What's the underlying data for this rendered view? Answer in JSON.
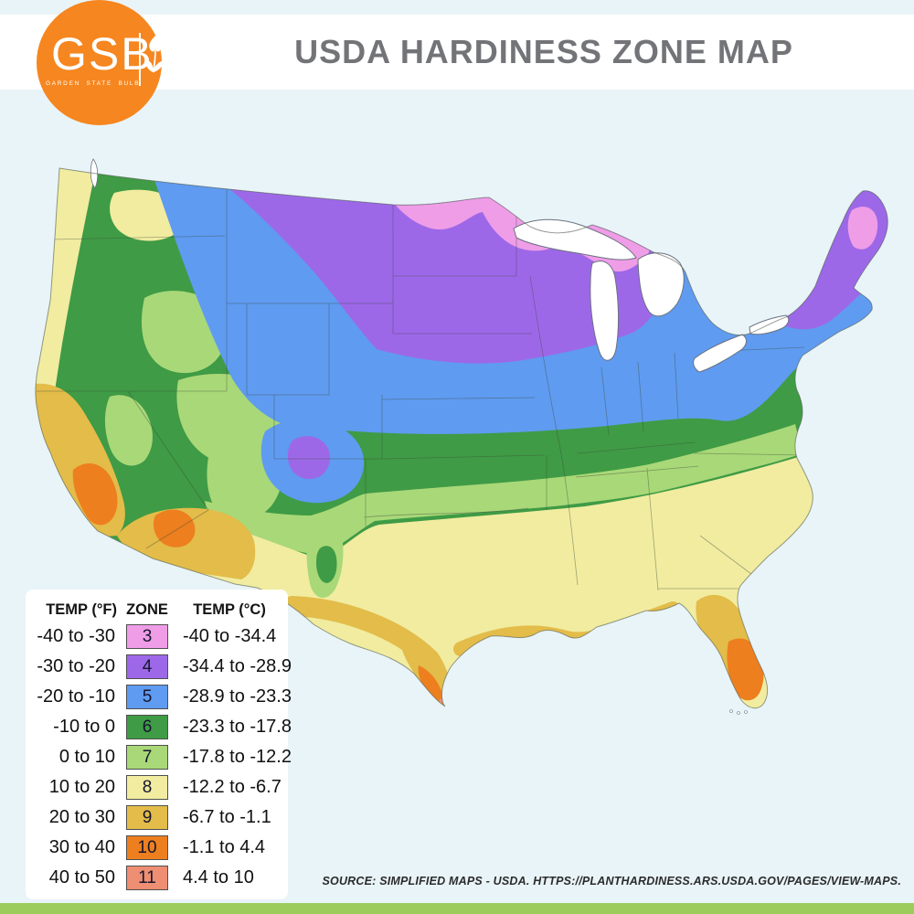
{
  "page": {
    "background": "#e9f4f8",
    "header_bg": "#ffffff",
    "bottom_bar_color": "#9ccd5c"
  },
  "logo": {
    "abbr": "GSB",
    "name": "GARDEN STATE BULB",
    "circle_color": "#f6861f"
  },
  "header": {
    "title": "USDA HARDINESS ZONE MAP"
  },
  "legend": {
    "col_temp_f": "TEMP (°F)",
    "col_zone": "ZONE",
    "col_temp_c": "TEMP (°C)",
    "rows": [
      {
        "temp_f": "-40 to -30",
        "zone": "3",
        "temp_c": "-40 to -34.4",
        "color": "#ef9de7"
      },
      {
        "temp_f": "-30 to -20",
        "zone": "4",
        "temp_c": "-34.4 to -28.9",
        "color": "#9d68e8"
      },
      {
        "temp_f": "-20 to -10",
        "zone": "5",
        "temp_c": "-28.9 to -23.3",
        "color": "#5f9bf0"
      },
      {
        "temp_f": "-10 to 0",
        "zone": "6",
        "temp_c": "-23.3 to -17.8",
        "color": "#3f9b45"
      },
      {
        "temp_f": "0 to 10",
        "zone": "7",
        "temp_c": "-17.8 to -12.2",
        "color": "#a9d878"
      },
      {
        "temp_f": "10 to 20",
        "zone": "8",
        "temp_c": "-12.2 to -6.7",
        "color": "#f1eca0"
      },
      {
        "temp_f": "20 to 30",
        "zone": "9",
        "temp_c": "-6.7 to -1.1",
        "color": "#e3bc4a"
      },
      {
        "temp_f": "30 to 40",
        "zone": "10",
        "temp_c": "-1.1 to 4.4",
        "color": "#ed7f1f"
      },
      {
        "temp_f": "40 to 50",
        "zone": "11",
        "temp_c": "4.4 to 10",
        "color": "#ee8e72"
      }
    ]
  },
  "map": {
    "lake_fill": "#ffffff",
    "outline_color": "#5a6156",
    "state_line_color": "#3c4a3c"
  },
  "footer": {
    "source": "SOURCE: SIMPLIFIED MAPS - USDA. HTTPS://PLANTHARDINESS.ARS.USDA.GOV/PAGES/VIEW-MAPS."
  },
  "chart_data": {
    "type": "table",
    "title": "USDA Hardiness Zones",
    "columns": [
      "TEMP (°F)",
      "ZONE",
      "TEMP (°C)"
    ],
    "rows": [
      [
        "-40 to -30",
        "3",
        "-40 to -34.4"
      ],
      [
        "-30 to -20",
        "4",
        "-34.4 to -28.9"
      ],
      [
        "-20 to -10",
        "5",
        "-28.9 to -23.3"
      ],
      [
        "-10 to 0",
        "6",
        "-23.3 to -17.8"
      ],
      [
        "0 to 10",
        "7",
        "-17.8 to -12.2"
      ],
      [
        "10 to 20",
        "8",
        "-12.2 to -6.7"
      ],
      [
        "20 to 30",
        "9",
        "-6.7 to -1.1"
      ],
      [
        "30 to 40",
        "10",
        "-1.1 to 4.4"
      ],
      [
        "40 to 50",
        "11",
        "4.4 to 10"
      ]
    ]
  }
}
